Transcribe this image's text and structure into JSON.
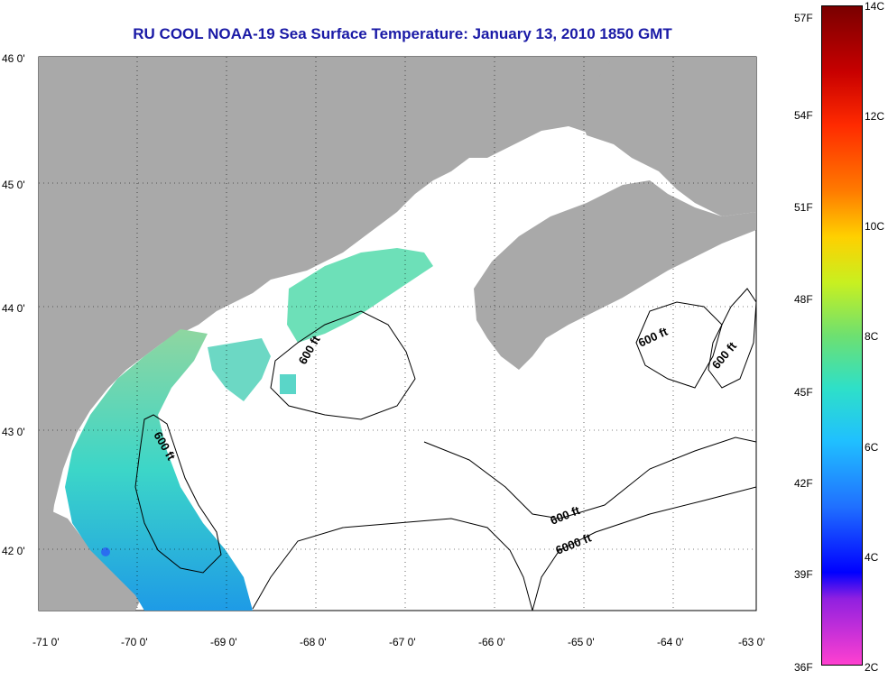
{
  "title": "RU COOL  NOAA-19  Sea Surface Temperature:  January 13, 2010 1850 GMT",
  "latitude_labels": [
    "46 0'",
    "45 0'",
    "44 0'",
    "43 0'",
    "42 0'"
  ],
  "longitude_labels": [
    "-71 0'",
    "-70 0'",
    "-69 0'",
    "-68 0'",
    "-67 0'",
    "-66 0'",
    "-65 0'",
    "-64 0'",
    "-63 0'"
  ],
  "contour_labels": [
    "600 ft",
    "600 ft",
    "600 ft",
    "600 ft",
    "600 ft",
    "6000 ft"
  ],
  "colorbar": {
    "fahrenheit_labels": [
      "57F",
      "54F",
      "51F",
      "48F",
      "45F",
      "42F",
      "39F",
      "36F"
    ],
    "celsius_labels": [
      "14C",
      "12C",
      "10C",
      "8C",
      "6C",
      "4C",
      "2C"
    ]
  },
  "colors": {
    "title": "#1a1aa6",
    "land": "#a9a9a9",
    "ocean_no_data": "#ffffff"
  }
}
